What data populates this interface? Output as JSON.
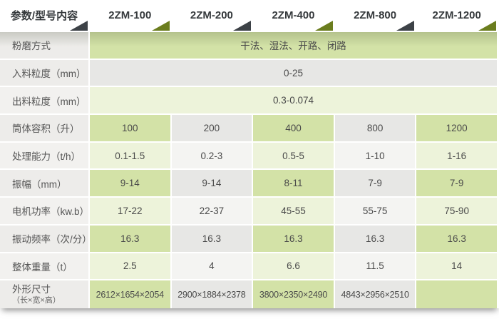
{
  "colors": {
    "accent_green_dark": "#d3e2a7",
    "accent_green_light": "#edf3da",
    "gray_cell_dark": "#e7e7e5",
    "gray_cell_light": "#f4f4f2",
    "label_bg": "#edecea",
    "triangle_dark": "#3d4247",
    "triangle_green": "#6b7d1e",
    "header_text": "#35393c"
  },
  "table": {
    "header": [
      "参数/型号内容",
      "2ZM-100",
      "2ZM-200",
      "2ZM-400",
      "2ZM-800",
      "2ZM-1200"
    ],
    "rows": [
      {
        "label": "粉磨方式",
        "span": "干法、湿法、开路、闭路"
      },
      {
        "label": "入料粒度（mm）",
        "span": "0-25"
      },
      {
        "label": "出料粒度（mm）",
        "span": "0.3-0.074"
      },
      {
        "label": "筒体容积（升）",
        "values": [
          "100",
          "200",
          "400",
          "800",
          "1200"
        ]
      },
      {
        "label": "处理能力（t/h）",
        "values": [
          "0.1-1.5",
          "0.2-3",
          "0.5-5",
          "1-10",
          "1-16"
        ]
      },
      {
        "label": "振幅（mm）",
        "values": [
          "9-14",
          "9-14",
          "8-11",
          "7-9",
          "7-9"
        ]
      },
      {
        "label": "电机功率（kw.b）",
        "values": [
          "17-22",
          "22-37",
          "45-55",
          "55-75",
          "75-90"
        ]
      },
      {
        "label": "振动频率（次/分）",
        "values": [
          "16.3",
          "16.3",
          "16.3",
          "16.3",
          "16.3"
        ]
      },
      {
        "label": "整体重量（t）",
        "values": [
          "2.5",
          "4",
          "6.6",
          "11.5",
          "14"
        ]
      },
      {
        "label": "外形尺寸",
        "sublabel": "（长×宽×高）",
        "values": [
          "2612×1654×2054",
          "2900×1884×2378",
          "3800×2350×2490",
          "4843×2956×2510",
          ""
        ]
      }
    ]
  }
}
